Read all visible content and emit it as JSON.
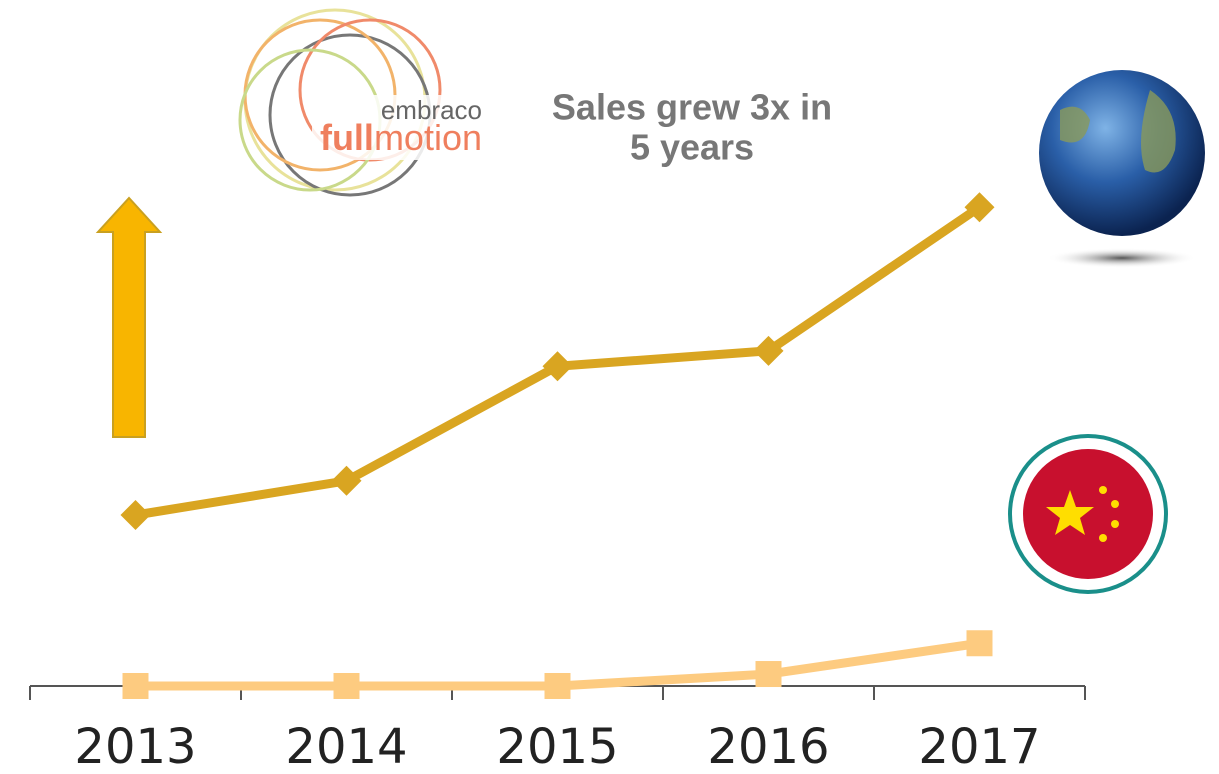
{
  "logo": {
    "brand": "embraco",
    "name_bold": "full",
    "name_rest": "motion"
  },
  "chart_data": {
    "type": "line",
    "title": [
      "Sales grew 3x in",
      "5 years"
    ],
    "categories": [
      "2013",
      "2014",
      "2015",
      "2016",
      "2017"
    ],
    "series": [
      {
        "color": "#d9a521",
        "marker": "diamond",
        "values": [
          10,
          12,
          18.7,
          19.6,
          28
        ]
      },
      {
        "color": "#fdcb80",
        "marker": "square",
        "values": [
          0,
          0,
          0,
          0.7,
          2.5
        ]
      }
    ],
    "ylim": [
      0,
      30
    ]
  }
}
